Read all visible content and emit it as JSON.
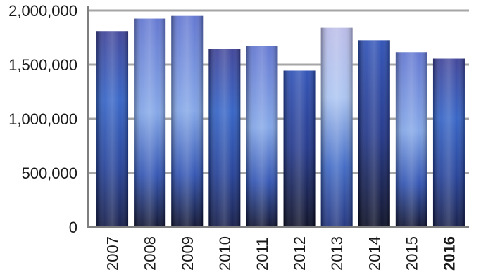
{
  "chart_data": {
    "type": "bar",
    "categories": [
      "2007",
      "2008",
      "2009",
      "2010",
      "2011",
      "2012",
      "2013",
      "2014",
      "2015",
      "2016"
    ],
    "highlighted_category": "2016",
    "values": [
      1810000,
      1925000,
      1950000,
      1645000,
      1675000,
      1445000,
      1840000,
      1725000,
      1615000,
      1555000
    ],
    "yticks": [
      0,
      500000,
      1000000,
      1500000,
      2000000
    ],
    "ytick_labels": [
      "0",
      "500,000",
      "1,000,000",
      "1,500,000",
      "2,000,000"
    ],
    "ylim": [
      0,
      2000000
    ],
    "grid": true,
    "title": "",
    "xlabel": "",
    "ylabel": "",
    "colors": {
      "grid": "#a6a6a6",
      "axis": "#7f7f7f",
      "bar_dark": "#0d1238",
      "bar_mid": "#2a56b8",
      "bar_light": "#8aa6e0",
      "bar_highlight": "#b7b9e6",
      "text": "#1a1a1a"
    }
  }
}
